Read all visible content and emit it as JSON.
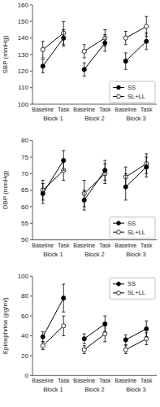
{
  "chart_data": [
    {
      "type": "line",
      "ylabel": "SBP (mmHg)",
      "categories": [
        "Baseline",
        "Task",
        "Baseline",
        "Task",
        "Baseline",
        "Task"
      ],
      "category_groups": [
        "Block 1",
        "Block 2",
        "Block 3"
      ],
      "series": [
        {
          "name": "SS",
          "color": "black",
          "marker": "circle",
          "values": [
            123,
            140,
            121,
            137,
            126,
            138
          ],
          "errors": [
            4,
            5,
            4,
            5,
            5,
            5
          ]
        },
        {
          "name": "SL+LL",
          "color": "black",
          "marker": "open-circle",
          "values": [
            133,
            143,
            132,
            140,
            140,
            147
          ],
          "errors": [
            5,
            7,
            4,
            5,
            4,
            6
          ]
        }
      ],
      "ylim": [
        100,
        160
      ],
      "yticks": [
        100,
        110,
        120,
        130,
        140,
        150,
        160
      ],
      "grid": false,
      "legend": "lower right"
    },
    {
      "type": "line",
      "ylabel": "DBP (mmHg)",
      "categories": [
        "Baseline",
        "Task",
        "Baseline",
        "Task",
        "Baseline",
        "Task"
      ],
      "category_groups": [
        "Block 1",
        "Block 2",
        "Block 3"
      ],
      "series": [
        {
          "name": "SS",
          "color": "black",
          "marker": "circle",
          "values": [
            64,
            74,
            62,
            71,
            66,
            72
          ],
          "errors": [
            3,
            3,
            3,
            3,
            4,
            3
          ]
        },
        {
          "name": "SL+LL",
          "color": "black",
          "marker": "open-circle",
          "values": [
            65,
            71,
            64,
            70,
            69,
            73
          ],
          "errors": [
            3,
            3,
            4,
            3,
            3,
            3
          ]
        }
      ],
      "ylim": [
        50,
        80
      ],
      "yticks": [
        50,
        55,
        60,
        65,
        70,
        75,
        80
      ],
      "grid": false,
      "legend": "lower right"
    },
    {
      "type": "line",
      "ylabel": "Epinephrine (pg/ml)",
      "categories": [
        "Baseline",
        "Task",
        "Baseline",
        "Task",
        "Baseline",
        "Task"
      ],
      "category_groups": [
        "Block 1",
        "Block 2",
        "Block 3"
      ],
      "series": [
        {
          "name": "SS",
          "color": "black",
          "marker": "circle",
          "values": [
            39,
            78,
            37,
            52,
            36,
            47
          ],
          "errors": [
            5,
            14,
            5,
            8,
            5,
            8
          ]
        },
        {
          "name": "SL+LL",
          "color": "black",
          "marker": "open-circle",
          "values": [
            30,
            50,
            26,
            42,
            26,
            37
          ],
          "errors": [
            4,
            10,
            4,
            8,
            4,
            6
          ]
        }
      ],
      "ylim": [
        0,
        100
      ],
      "yticks": [
        0,
        20,
        40,
        60,
        80,
        100
      ],
      "grid": false,
      "legend": "upper right"
    }
  ]
}
